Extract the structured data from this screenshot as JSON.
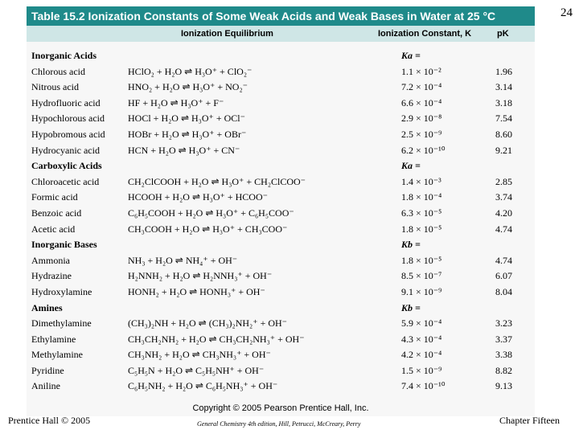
{
  "slide_number": "24",
  "table": {
    "title": "Table 15.2  Ionization Constants of Some Weak Acids and Weak Bases in Water at 25 °C",
    "headers": {
      "equilibrium": "Ionization Equilibrium",
      "constant": "Ionization Constant, K",
      "pk": "pK"
    },
    "rows": [
      {
        "name": "Inorganic Acids",
        "eq": "",
        "k": "Ka =",
        "pk": "",
        "section": true
      },
      {
        "name": "Chlorous acid",
        "eq": "HClO₂ + H₂O ⇌ H₃O⁺ + ClO₂⁻",
        "k": "1.1 × 10⁻²",
        "pk": "1.96"
      },
      {
        "name": "Nitrous acid",
        "eq": "HNO₂ + H₂O ⇌ H₃O⁺ + NO₂⁻",
        "k": "7.2 × 10⁻⁴",
        "pk": "3.14"
      },
      {
        "name": "Hydrofluoric acid",
        "eq": "HF + H₂O ⇌ H₃O⁺ + F⁻",
        "k": "6.6 × 10⁻⁴",
        "pk": "3.18"
      },
      {
        "name": "Hypochlorous acid",
        "eq": "HOCl + H₂O ⇌ H₃O⁺ + OCl⁻",
        "k": "2.9 × 10⁻⁸",
        "pk": "7.54"
      },
      {
        "name": "Hypobromous acid",
        "eq": "HOBr + H₂O ⇌ H₃O⁺ + OBr⁻",
        "k": "2.5 × 10⁻⁹",
        "pk": "8.60"
      },
      {
        "name": "Hydrocyanic acid",
        "eq": "HCN + H₂O ⇌ H₃O⁺ + CN⁻",
        "k": "6.2 × 10⁻¹⁰",
        "pk": "9.21"
      },
      {
        "name": "Carboxylic Acids",
        "eq": "",
        "k": "Ka =",
        "pk": "",
        "section": true
      },
      {
        "name": "Chloroacetic acid",
        "eq": "CH₂ClCOOH + H₂O ⇌ H₃O⁺ + CH₂ClCOO⁻",
        "k": "1.4 × 10⁻³",
        "pk": "2.85"
      },
      {
        "name": "Formic acid",
        "eq": "HCOOH + H₂O ⇌ H₃O⁺ + HCOO⁻",
        "k": "1.8 × 10⁻⁴",
        "pk": "3.74"
      },
      {
        "name": "Benzoic acid",
        "eq": "C₆H₅COOH + H₂O ⇌ H₃O⁺ + C₆H₅COO⁻",
        "k": "6.3 × 10⁻⁵",
        "pk": "4.20"
      },
      {
        "name": "Acetic acid",
        "eq": "CH₃COOH + H₂O ⇌ H₃O⁺ + CH₃COO⁻",
        "k": "1.8 × 10⁻⁵",
        "pk": "4.74"
      },
      {
        "name": "Inorganic Bases",
        "eq": "",
        "k": "Kb =",
        "pk": "",
        "section": true
      },
      {
        "name": "Ammonia",
        "eq": "NH₃ + H₂O ⇌ NH₄⁺ + OH⁻",
        "k": "1.8 × 10⁻⁵",
        "pk": "4.74"
      },
      {
        "name": "Hydrazine",
        "eq": "H₂NNH₂ + H₂O ⇌ H₂NNH₃⁺ + OH⁻",
        "k": "8.5 × 10⁻⁷",
        "pk": "6.07"
      },
      {
        "name": "Hydroxylamine",
        "eq": "HONH₂ + H₂O ⇌ HONH₃⁺ + OH⁻",
        "k": "9.1 × 10⁻⁹",
        "pk": "8.04"
      },
      {
        "name": "Amines",
        "eq": "",
        "k": "Kb =",
        "pk": "",
        "section": true
      },
      {
        "name": "Dimethylamine",
        "eq": "(CH₃)₂NH + H₂O ⇌ (CH₃)₂NH₂⁺ + OH⁻",
        "k": "5.9 × 10⁻⁴",
        "pk": "3.23"
      },
      {
        "name": "Ethylamine",
        "eq": "CH₃CH₂NH₂ + H₂O ⇌ CH₃CH₂NH₃⁺ + OH⁻",
        "k": "4.3 × 10⁻⁴",
        "pk": "3.37"
      },
      {
        "name": "Methylamine",
        "eq": "CH₃NH₂ + H₂O ⇌ CH₃NH₃⁺ + OH⁻",
        "k": "4.2 × 10⁻⁴",
        "pk": "3.38"
      },
      {
        "name": "Pyridine",
        "eq": "C₅H₅N + H₂O ⇌ C₅H₅NH⁺ + OH⁻",
        "k": "1.5 × 10⁻⁹",
        "pk": "8.82"
      },
      {
        "name": "Aniline",
        "eq": "C₆H₅NH₂ + H₂O ⇌ C₆H₅NH₃⁺ + OH⁻",
        "k": "7.4 × 10⁻¹⁰",
        "pk": "9.13"
      }
    ],
    "copyright": "Copyright © 2005 Pearson Prentice Hall, Inc."
  },
  "footer": {
    "left": "Prentice Hall © 2005",
    "center": "General Chemistry 4th edition, Hill, Petrucci, McCreary, Perry",
    "right": "Chapter Fifteen"
  },
  "colors": {
    "title_bar": "#1f8a8a",
    "subheader": "#cfe6e6"
  }
}
